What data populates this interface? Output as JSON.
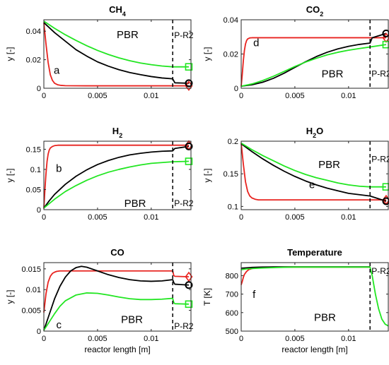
{
  "figure": {
    "colors": {
      "red": "#e8231f",
      "black": "#000000",
      "green": "#22e622"
    },
    "series_order": [
      "red",
      "black",
      "green"
    ],
    "marker_shapes": {
      "red": "diamond",
      "black": "circle",
      "green": "square"
    },
    "reactor_split_line": {
      "style": "dashed",
      "color": "#000000"
    }
  },
  "chart_data": [
    {
      "id": "ch4",
      "type": "line",
      "title": "CH",
      "title_sub": "4",
      "xlabel": "",
      "ylabel": "y [-]",
      "xlim": [
        0,
        0.0137
      ],
      "ylim": [
        0,
        0.048
      ],
      "xticks": [
        0,
        0.005,
        0.01
      ],
      "xtick_labels": [
        "0",
        "0.005",
        "0.01"
      ],
      "yticks": [
        0,
        0.02,
        0.04
      ],
      "ytick_labels": [
        "0",
        "0.02",
        "0.04"
      ],
      "grid": false,
      "x_scale": "linear",
      "y_scale": "linear",
      "panel_letter": "a",
      "letter_pos": [
        0.0012,
        0.0125
      ],
      "region_label": "PBR",
      "region_pos": [
        0.0078,
        0.0375
      ],
      "divider_x": 0.012,
      "divider_label": "P-R2",
      "divider_label_y": 0.037,
      "series": [
        {
          "color": "red",
          "x": [
            0,
            0.0002,
            0.0004,
            0.0006,
            0.0008,
            0.001,
            0.0013,
            0.0016,
            0.002,
            0.004,
            0.012,
            0.0135
          ],
          "y": [
            0.046,
            0.031,
            0.018,
            0.0095,
            0.0055,
            0.0035,
            0.0024,
            0.002,
            0.0018,
            0.0017,
            0.0017,
            0.0017
          ]
        },
        {
          "color": "black",
          "x": [
            0,
            0.001,
            0.002,
            0.003,
            0.004,
            0.005,
            0.006,
            0.007,
            0.008,
            0.009,
            0.01,
            0.011,
            0.012,
            0.0122,
            0.0135
          ],
          "y": [
            0.046,
            0.039,
            0.033,
            0.027,
            0.0225,
            0.0185,
            0.0155,
            0.013,
            0.011,
            0.0095,
            0.0082,
            0.0072,
            0.0066,
            0.0038,
            0.0035
          ]
        },
        {
          "color": "green",
          "x": [
            0,
            0.001,
            0.002,
            0.003,
            0.004,
            0.005,
            0.006,
            0.007,
            0.008,
            0.009,
            0.01,
            0.011,
            0.012,
            0.0135
          ],
          "y": [
            0.047,
            0.042,
            0.0375,
            0.0335,
            0.0298,
            0.0265,
            0.0237,
            0.0213,
            0.0193,
            0.0177,
            0.0165,
            0.0156,
            0.015,
            0.015
          ]
        }
      ]
    },
    {
      "id": "co2",
      "type": "line",
      "title": "CO",
      "title_sub": "2",
      "xlabel": "",
      "ylabel": "y [-]",
      "xlim": [
        0,
        0.0137
      ],
      "ylim": [
        0,
        0.04
      ],
      "xticks": [
        0,
        0.005,
        0.01
      ],
      "xtick_labels": [
        "0",
        "0.005",
        "0.01"
      ],
      "yticks": [
        0,
        0.02,
        0.04
      ],
      "ytick_labels": [
        "0",
        "0.02",
        "0.04"
      ],
      "grid": false,
      "x_scale": "linear",
      "y_scale": "linear",
      "panel_letter": "d",
      "letter_pos": [
        0.0014,
        0.0265
      ],
      "region_label": "PBR",
      "region_pos": [
        0.0085,
        0.0085
      ],
      "divider_x": 0.012,
      "divider_label": "P-R2",
      "divider_label_y": 0.0085,
      "series": [
        {
          "color": "red",
          "x": [
            0,
            0.0001,
            0.0002,
            0.0003,
            0.0004,
            0.0005,
            0.0006,
            0.0008,
            0.001,
            0.0013,
            0.002,
            0.012,
            0.0135
          ],
          "y": [
            0.001,
            0.008,
            0.016,
            0.022,
            0.0258,
            0.0278,
            0.0288,
            0.0294,
            0.0295,
            0.0295,
            0.0295,
            0.0295,
            0.0295
          ]
        },
        {
          "color": "black",
          "x": [
            0,
            0.001,
            0.002,
            0.003,
            0.004,
            0.005,
            0.006,
            0.007,
            0.008,
            0.009,
            0.01,
            0.011,
            0.012,
            0.0122,
            0.0135
          ],
          "y": [
            0.0012,
            0.002,
            0.0035,
            0.0058,
            0.0088,
            0.0122,
            0.0155,
            0.0185,
            0.021,
            0.023,
            0.0245,
            0.0256,
            0.0264,
            0.0295,
            0.032
          ]
        },
        {
          "color": "green",
          "x": [
            0,
            0.001,
            0.002,
            0.003,
            0.004,
            0.005,
            0.006,
            0.007,
            0.008,
            0.009,
            0.01,
            0.011,
            0.012,
            0.0135
          ],
          "y": [
            0.0012,
            0.0025,
            0.0045,
            0.007,
            0.0098,
            0.0127,
            0.0153,
            0.0175,
            0.0195,
            0.021,
            0.0222,
            0.0232,
            0.0241,
            0.0255
          ]
        }
      ]
    },
    {
      "id": "h2",
      "type": "line",
      "title": "H",
      "title_sub": "2",
      "xlabel": "",
      "ylabel": "y [-]",
      "xlim": [
        0,
        0.0137
      ],
      "ylim": [
        0,
        0.17
      ],
      "xticks": [
        0,
        0.005,
        0.01
      ],
      "xtick_labels": [
        "0",
        "0.005",
        "0.01"
      ],
      "yticks": [
        0,
        0.05,
        0.1,
        0.15
      ],
      "ytick_labels": [
        "0",
        "0.05",
        "0.1",
        "0.15"
      ],
      "grid": false,
      "x_scale": "linear",
      "y_scale": "linear",
      "panel_letter": "b",
      "letter_pos": [
        0.0014,
        0.1025
      ],
      "region_label": "PBR",
      "region_pos": [
        0.0085,
        0.016
      ],
      "divider_x": 0.012,
      "divider_label": "P-R2",
      "divider_label_y": 0.016,
      "series": [
        {
          "color": "red",
          "x": [
            0,
            0.0001,
            0.0002,
            0.0003,
            0.0004,
            0.0005,
            0.0006,
            0.0008,
            0.001,
            0.0013,
            0.002,
            0.012,
            0.0135
          ],
          "y": [
            0.003,
            0.05,
            0.09,
            0.12,
            0.138,
            0.148,
            0.153,
            0.157,
            0.159,
            0.16,
            0.16,
            0.16,
            0.16
          ]
        },
        {
          "color": "black",
          "x": [
            0,
            0.0005,
            0.001,
            0.002,
            0.003,
            0.004,
            0.005,
            0.006,
            0.007,
            0.008,
            0.009,
            0.01,
            0.011,
            0.012,
            0.0122,
            0.0135
          ],
          "y": [
            0.004,
            0.022,
            0.038,
            0.063,
            0.083,
            0.099,
            0.112,
            0.122,
            0.13,
            0.136,
            0.14,
            0.143,
            0.145,
            0.146,
            0.152,
            0.157
          ]
        },
        {
          "color": "green",
          "x": [
            0,
            0.0005,
            0.001,
            0.002,
            0.003,
            0.004,
            0.005,
            0.006,
            0.007,
            0.008,
            0.009,
            0.01,
            0.011,
            0.012,
            0.0135
          ],
          "y": [
            0.004,
            0.015,
            0.026,
            0.045,
            0.06,
            0.073,
            0.084,
            0.093,
            0.1,
            0.106,
            0.111,
            0.115,
            0.117,
            0.119,
            0.12
          ]
        }
      ]
    },
    {
      "id": "h2o",
      "type": "line",
      "title": "H",
      "title_sub": "2",
      "title_suffix": "O",
      "xlabel": "",
      "ylabel": "y [-]",
      "xlim": [
        0,
        0.0137
      ],
      "ylim": [
        0.095,
        0.2
      ],
      "xticks": [
        0,
        0.005,
        0.01
      ],
      "xtick_labels": [
        "0",
        "0.005",
        "0.01"
      ],
      "yticks": [
        0.1,
        0.15,
        0.2
      ],
      "ytick_labels": [
        "0.1",
        "0.15",
        "0.2"
      ],
      "grid": false,
      "x_scale": "linear",
      "y_scale": "linear",
      "panel_letter": "e",
      "letter_pos": [
        0.0066,
        0.1335
      ],
      "region_label": "PBR",
      "region_pos": [
        0.0082,
        0.1645
      ],
      "divider_x": 0.012,
      "divider_label": "P-R2",
      "divider_label_y": 0.1725,
      "series": [
        {
          "color": "red",
          "x": [
            0,
            0.0002,
            0.0004,
            0.0006,
            0.0008,
            0.001,
            0.0013,
            0.0016,
            0.002,
            0.004,
            0.012,
            0.0135
          ],
          "y": [
            0.197,
            0.165,
            0.138,
            0.123,
            0.116,
            0.113,
            0.111,
            0.11,
            0.11,
            0.11,
            0.11,
            0.11
          ]
        },
        {
          "color": "black",
          "x": [
            0,
            0.001,
            0.002,
            0.003,
            0.004,
            0.005,
            0.006,
            0.007,
            0.008,
            0.009,
            0.01,
            0.011,
            0.012,
            0.0135
          ],
          "y": [
            0.196,
            0.184,
            0.173,
            0.163,
            0.154,
            0.146,
            0.139,
            0.133,
            0.128,
            0.124,
            0.12,
            0.118,
            0.116,
            0.108
          ]
        },
        {
          "color": "green",
          "x": [
            0,
            0.001,
            0.002,
            0.003,
            0.004,
            0.005,
            0.006,
            0.007,
            0.008,
            0.009,
            0.01,
            0.011,
            0.012,
            0.0135
          ],
          "y": [
            0.197,
            0.187,
            0.178,
            0.17,
            0.162,
            0.155,
            0.149,
            0.144,
            0.14,
            0.136,
            0.133,
            0.131,
            0.13,
            0.13
          ]
        }
      ]
    },
    {
      "id": "co",
      "type": "line",
      "title": "CO",
      "title_sub": "",
      "xlabel": "reactor length [m]",
      "ylabel": "y [-]",
      "xlim": [
        0,
        0.0137
      ],
      "ylim": [
        0,
        0.0165
      ],
      "xticks": [
        0,
        0.005,
        0.01
      ],
      "xtick_labels": [
        "0",
        "0.005",
        "0.01"
      ],
      "yticks": [
        0,
        0.005,
        0.01,
        0.015
      ],
      "ytick_labels": [
        "0",
        "0.005",
        "0.01",
        "0.015"
      ],
      "grid": false,
      "x_scale": "linear",
      "y_scale": "linear",
      "panel_letter": "c",
      "letter_pos": [
        0.0014,
        0.0015
      ],
      "region_label": "PBR",
      "region_pos": [
        0.0082,
        0.0028
      ],
      "divider_x": 0.012,
      "divider_label": "P-R2",
      "divider_label_y": 0.0012,
      "series": [
        {
          "color": "red",
          "x": [
            0,
            0.0002,
            0.0004,
            0.0006,
            0.0008,
            0.001,
            0.0012,
            0.0015,
            0.002,
            0.004,
            0.006,
            0.012,
            0.0121,
            0.0122,
            0.0135
          ],
          "y": [
            0.0045,
            0.009,
            0.0118,
            0.0132,
            0.0139,
            0.0142,
            0.0144,
            0.0145,
            0.0145,
            0.0145,
            0.0145,
            0.0145,
            0.0134,
            0.0132,
            0.0131
          ]
        },
        {
          "color": "black",
          "x": [
            0,
            0.0005,
            0.001,
            0.0015,
            0.002,
            0.0025,
            0.003,
            0.0035,
            0.004,
            0.005,
            0.006,
            0.007,
            0.008,
            0.009,
            0.01,
            0.011,
            0.012,
            0.0121,
            0.0122,
            0.0135
          ],
          "y": [
            0.0002,
            0.004,
            0.0078,
            0.0108,
            0.013,
            0.0145,
            0.0153,
            0.0156,
            0.0154,
            0.0145,
            0.0136,
            0.0129,
            0.0124,
            0.0121,
            0.012,
            0.0121,
            0.0124,
            0.0117,
            0.0113,
            0.0111
          ]
        },
        {
          "color": "green",
          "x": [
            0,
            0.0005,
            0.001,
            0.0015,
            0.002,
            0.003,
            0.004,
            0.005,
            0.006,
            0.007,
            0.008,
            0.009,
            0.01,
            0.011,
            0.012,
            0.0121,
            0.0122,
            0.0135
          ],
          "y": [
            0.0002,
            0.0022,
            0.0042,
            0.006,
            0.0073,
            0.0087,
            0.0092,
            0.0091,
            0.0087,
            0.0082,
            0.0078,
            0.0076,
            0.0076,
            0.0077,
            0.0079,
            0.0069,
            0.0066,
            0.0065
          ]
        }
      ]
    },
    {
      "id": "temperature",
      "type": "line",
      "title": "Temperature",
      "title_sub": "",
      "xlabel": "reactor length [m]",
      "ylabel": "T [K]",
      "xlim": [
        0,
        0.0137
      ],
      "ylim": [
        500,
        870
      ],
      "xticks": [
        0,
        0.005,
        0.01
      ],
      "xtick_labels": [
        "0",
        "0.005",
        "0.01"
      ],
      "yticks": [
        500,
        600,
        700,
        800
      ],
      "ytick_labels": [
        "500",
        "600",
        "700",
        "800"
      ],
      "grid": false,
      "x_scale": "linear",
      "y_scale": "linear",
      "panel_letter": "f",
      "letter_pos": [
        0.0012,
        698
      ],
      "region_label": "PBR",
      "region_pos": [
        0.0078,
        575
      ],
      "divider_x": 0.012,
      "divider_label": "P-R2",
      "divider_label_y": 825,
      "series": [
        {
          "color": "red",
          "x": [
            0,
            0.0001,
            0.0002,
            0.0003,
            0.0005,
            0.0007,
            0.001,
            0.0015,
            0.002,
            0.004,
            0.012
          ],
          "y": [
            750,
            768,
            790,
            806,
            822,
            832,
            838,
            843,
            845,
            846,
            846
          ]
        },
        {
          "color": "black",
          "x": [
            0,
            0.0005,
            0.001,
            0.0015,
            0.002,
            0.003,
            0.004,
            0.012
          ],
          "y": [
            840,
            842,
            844,
            845,
            846,
            847,
            847,
            847
          ]
        },
        {
          "color": "green",
          "x": [
            0,
            0.0005,
            0.001,
            0.002,
            0.003,
            0.004,
            0.005,
            0.012,
            0.0122,
            0.0125,
            0.0128,
            0.0131,
            0.0134,
            0.0137
          ],
          "y": [
            832,
            836,
            838,
            841,
            843,
            845,
            846,
            846,
            800,
            700,
            620,
            565,
            538,
            528
          ]
        }
      ]
    }
  ]
}
